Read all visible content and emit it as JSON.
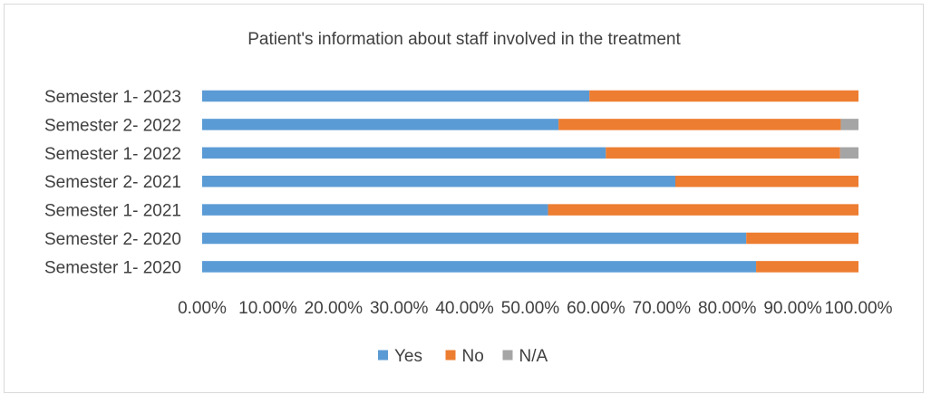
{
  "chart_data": {
    "type": "bar",
    "orientation": "horizontal",
    "stacked": "percent",
    "title": "Patient's information about staff involved in the treatment",
    "categories": [
      "Semester 1- 2023",
      "Semester 2- 2022",
      "Semester 1- 2022",
      "Semester 2- 2021",
      "Semester 1- 2021",
      "Semester 2- 2020",
      "Semester 1- 2020"
    ],
    "series": [
      {
        "name": "Yes",
        "color": "#5b9bd5",
        "values": [
          0.59,
          0.543,
          0.615,
          0.721,
          0.527,
          0.829,
          0.844
        ]
      },
      {
        "name": "No",
        "color": "#ed7d31",
        "values": [
          0.41,
          0.43,
          0.357,
          0.279,
          0.473,
          0.171,
          0.156
        ]
      },
      {
        "name": "N/A",
        "color": "#a5a5a5",
        "values": [
          0.0,
          0.027,
          0.028,
          0.0,
          0.0,
          0.0,
          0.0
        ]
      }
    ],
    "xlim": [
      0,
      1
    ],
    "xticks": [
      "0.00%",
      "10.00%",
      "20.00%",
      "30.00%",
      "40.00%",
      "50.00%",
      "60.00%",
      "70.00%",
      "80.00%",
      "90.00%",
      "100.00%"
    ],
    "grid": false,
    "legend": "bottom"
  }
}
